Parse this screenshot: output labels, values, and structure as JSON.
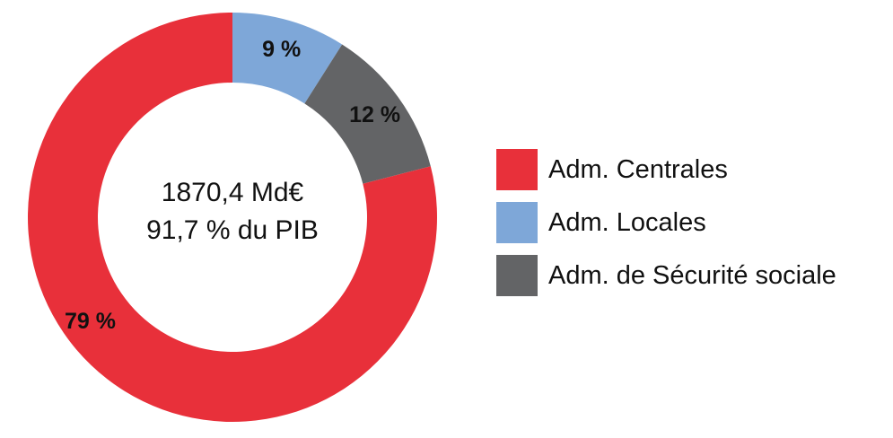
{
  "chart_data": {
    "type": "pie",
    "donut": true,
    "slices": [
      {
        "label": "Adm. Centrales",
        "value": 79,
        "value_label": "79 %",
        "color": "#e8303a"
      },
      {
        "label": "Adm. Locales",
        "value": 9,
        "value_label": "9 %",
        "color": "#7ea7d8"
      },
      {
        "label": "Adm. de Sécurité sociale",
        "value": 12,
        "value_label": "12 %",
        "color": "#636466"
      }
    ],
    "center_text": [
      "1870,4 Md€",
      "91,7 % du PIB"
    ],
    "legend_position": "right",
    "start_angle_deg": 0,
    "direction": "clockwise"
  }
}
